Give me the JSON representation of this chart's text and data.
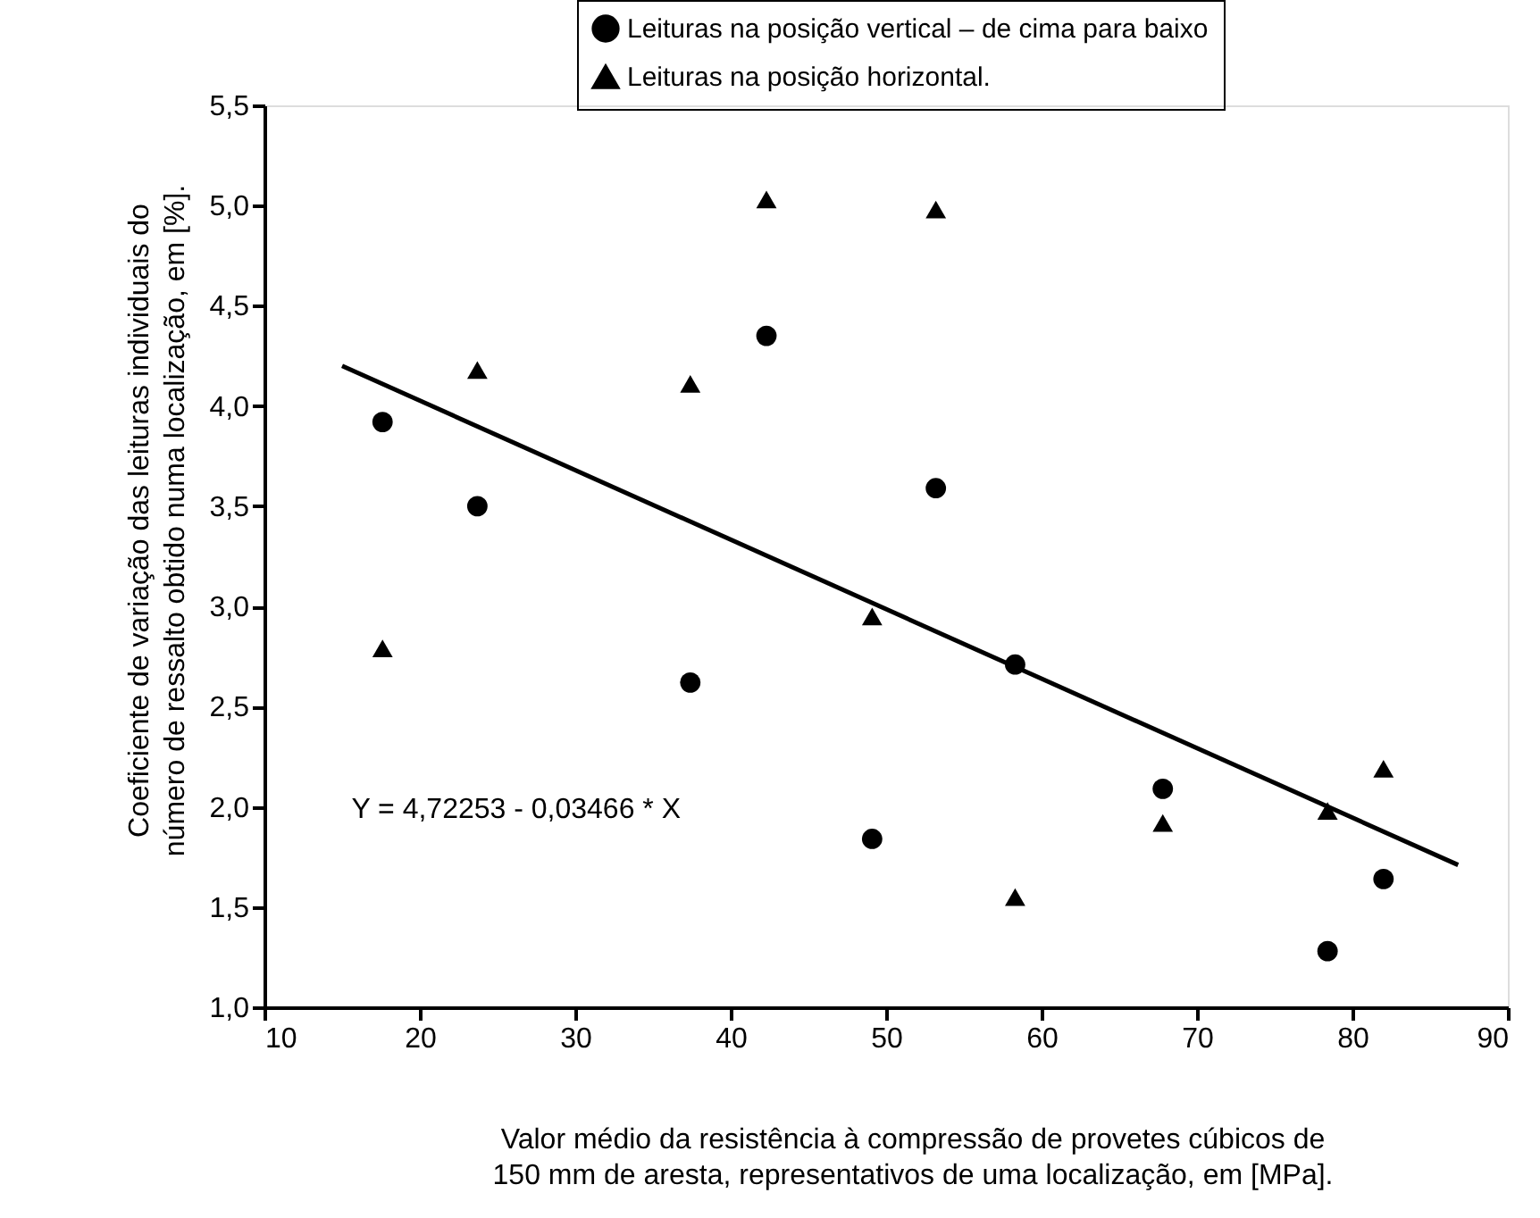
{
  "chart_data": {
    "type": "scatter",
    "xlabel": "Valor médio da resistência à compressão de provetes cúbicos de\n150 mm de aresta, representativos de uma localização, em [MPa].",
    "ylabel": "Coeficiente de variação das leituras individuais do\nnúmero de ressalto obtido numa localização, em [%].",
    "xlim": [
      10,
      90
    ],
    "xticks": [
      10,
      20,
      30,
      40,
      50,
      60,
      70,
      80,
      90
    ],
    "ylim": [
      1.0,
      5.5
    ],
    "yticks": [
      {
        "value": 1.0,
        "label": "1,0"
      },
      {
        "value": 1.5,
        "label": "1,5"
      },
      {
        "value": 2.0,
        "label": "2,0"
      },
      {
        "value": 2.5,
        "label": "2,5"
      },
      {
        "value": 3.0,
        "label": "3,0"
      },
      {
        "value": 3.5,
        "label": "3,5"
      },
      {
        "value": 4.0,
        "label": "4,0"
      },
      {
        "value": 4.5,
        "label": "4,5"
      },
      {
        "value": 5.0,
        "label": "5,0"
      },
      {
        "value": 5.5,
        "label": "5,5"
      }
    ],
    "grid": false,
    "legend": "top",
    "annotations": [
      "Y = 4,72253 - 0,03466 * X"
    ],
    "series": [
      {
        "name": "Leituras na posição vertical – de cima para baixo",
        "color": "#000000",
        "marker": "circle",
        "x": [
          17.6,
          23.7,
          37.4,
          42.3,
          49.1,
          53.2,
          58.3,
          67.8,
          78.4,
          82.0
        ],
        "values": [
          3.92,
          3.5,
          2.62,
          4.35,
          1.84,
          3.59,
          2.71,
          2.09,
          1.28,
          1.64
        ]
      },
      {
        "name": "Leituras na posição horizontal.",
        "color": "#000000",
        "marker": "triangle",
        "x": [
          17.6,
          23.7,
          37.4,
          42.3,
          49.1,
          53.2,
          58.3,
          67.8,
          78.4,
          82.0
        ],
        "values": [
          2.79,
          4.18,
          4.11,
          5.03,
          2.95,
          4.98,
          1.55,
          1.92,
          1.98,
          2.19
        ]
      },
      {
        "type": "line",
        "color": "#000000",
        "marker": "none",
        "line_style": "solid",
        "x": [
          15,
          86.8
        ],
        "values": [
          4.2,
          1.71
        ]
      }
    ]
  }
}
